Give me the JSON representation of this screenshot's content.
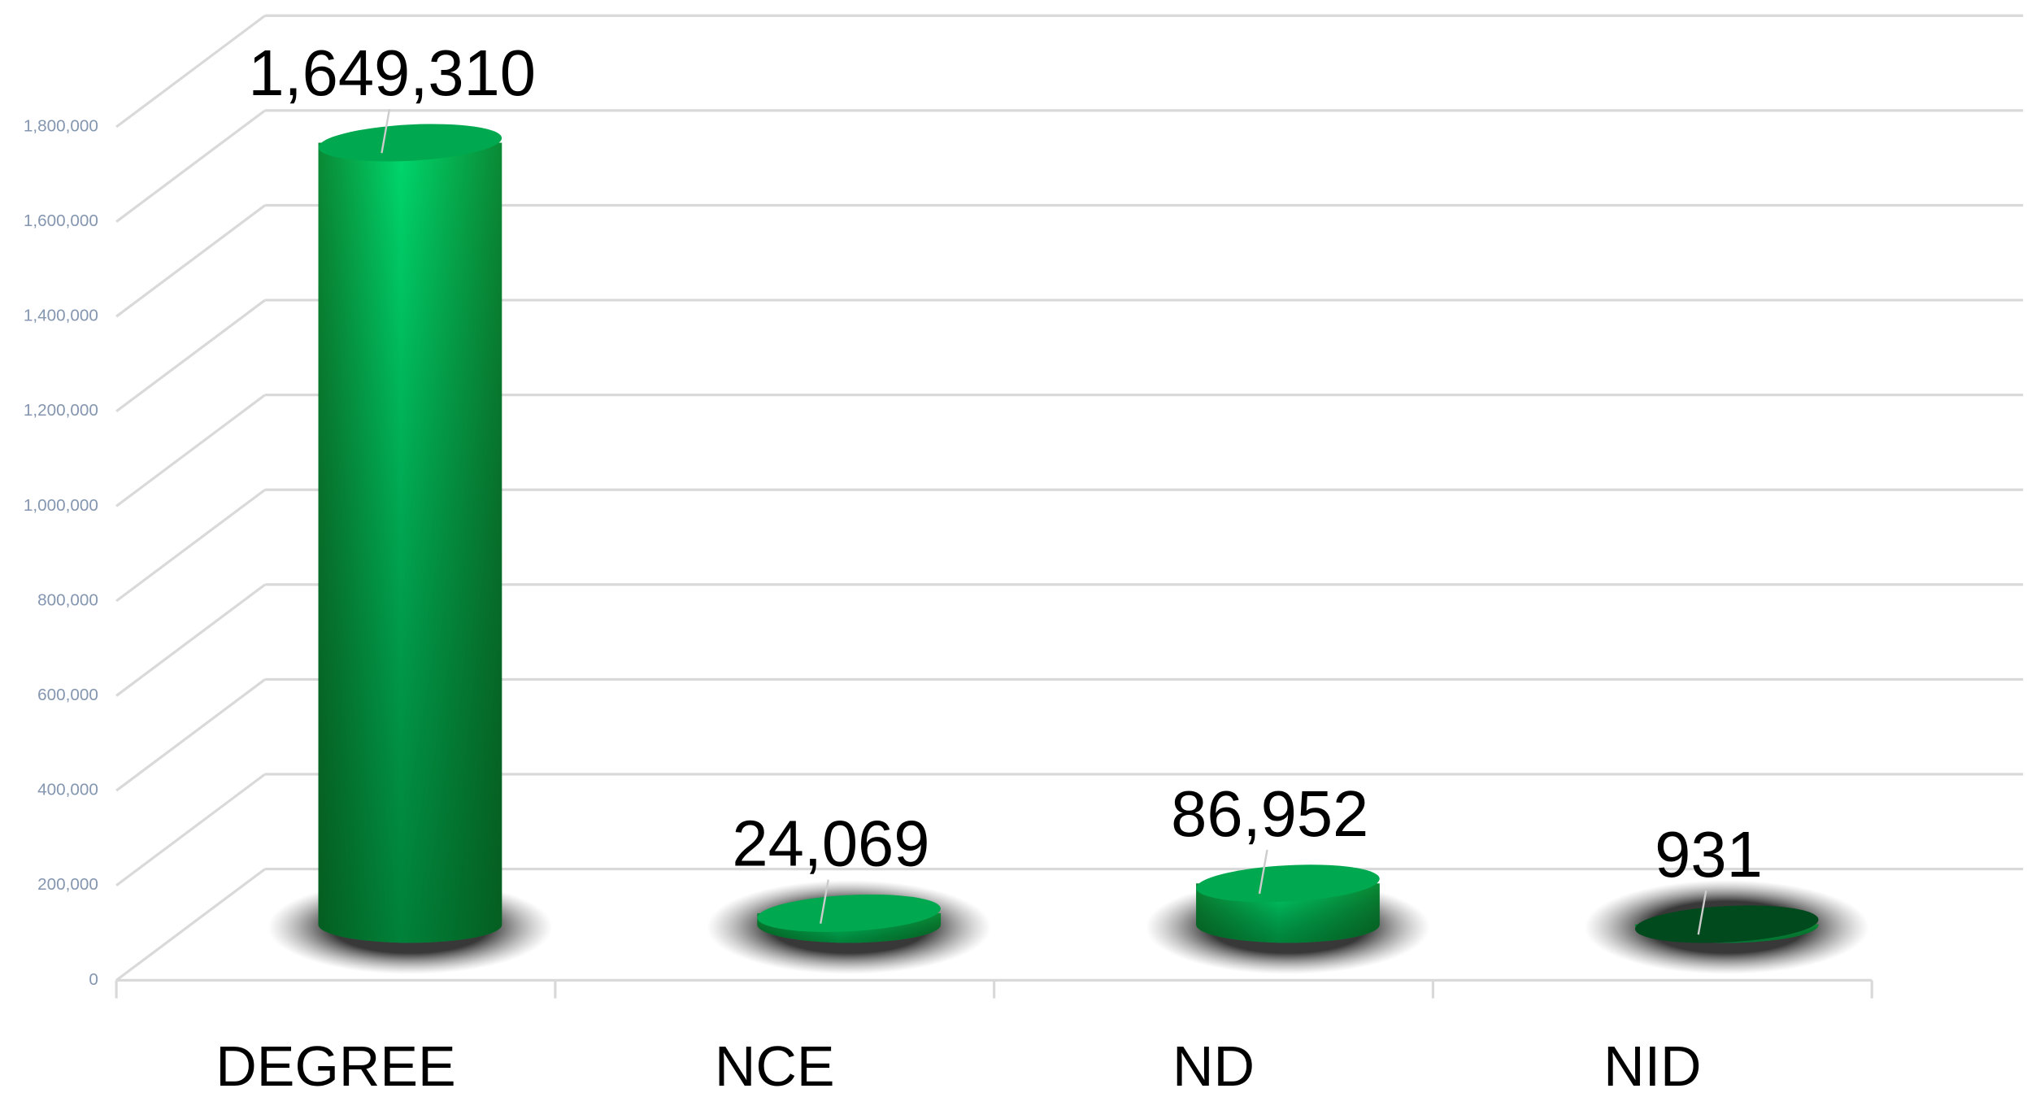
{
  "chart_data": {
    "type": "bar",
    "style": "3d-cylinder",
    "categories": [
      "DEGREE",
      "NCE",
      "ND",
      "NID"
    ],
    "values": [
      1649310,
      24069,
      86952,
      931
    ],
    "value_labels": [
      "1,649,310",
      "24,069",
      "86,952",
      "931"
    ],
    "color": "#00d26a",
    "ylim": [
      0,
      1800000
    ],
    "yticks": [
      0,
      {
        "value": 200000,
        "label": "200,000"
      },
      {
        "value": 400000,
        "label": "400,000"
      },
      {
        "value": 600000,
        "label": "600,000"
      },
      {
        "value": 800000,
        "label": "800,000"
      },
      {
        "value": 1000000,
        "label": "1,000,000"
      },
      {
        "value": 1200000,
        "label": "1,200,000"
      },
      {
        "value": 1400000,
        "label": "1,400,000"
      },
      {
        "value": 1600000,
        "label": "1,600,000"
      },
      {
        "value": 1800000,
        "label": "1,800,000"
      }
    ],
    "grid": true
  }
}
